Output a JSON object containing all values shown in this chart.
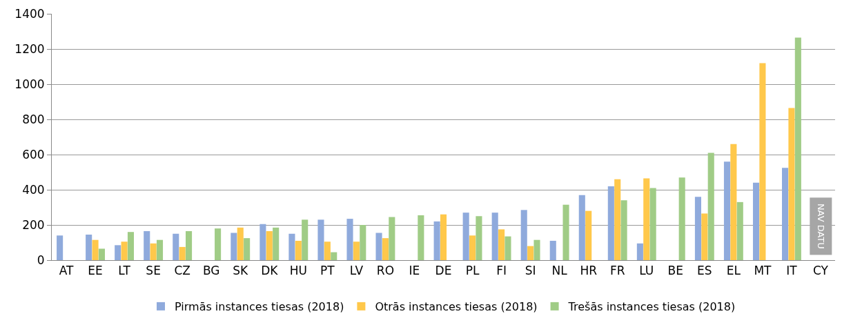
{
  "chart_data": {
    "type": "bar",
    "categories": [
      "AT",
      "EE",
      "LT",
      "SE",
      "CZ",
      "BG",
      "SK",
      "DK",
      "HU",
      "PT",
      "LV",
      "RO",
      "IE",
      "DE",
      "PL",
      "FI",
      "SI",
      "NL",
      "HR",
      "FR",
      "LU",
      "BE",
      "ES",
      "EL",
      "MT",
      "IT",
      "CY"
    ],
    "series": [
      {
        "name": "Pirmās instances tiesas (2018)",
        "color": "#8faadc",
        "values": [
          140,
          145,
          85,
          165,
          150,
          null,
          155,
          205,
          150,
          230,
          235,
          155,
          null,
          220,
          270,
          270,
          285,
          110,
          370,
          420,
          95,
          null,
          360,
          560,
          440,
          525,
          null
        ]
      },
      {
        "name": "Otrās instances tiesas (2018)",
        "color": "#ffc84b",
        "values": [
          null,
          115,
          105,
          95,
          75,
          null,
          185,
          165,
          110,
          105,
          105,
          125,
          null,
          260,
          140,
          175,
          80,
          null,
          280,
          460,
          465,
          null,
          265,
          660,
          1120,
          865,
          null
        ]
      },
      {
        "name": "Trešās instances tiesas (2018)",
        "color": "#a0cc86",
        "values": [
          null,
          65,
          160,
          115,
          165,
          180,
          125,
          185,
          230,
          45,
          200,
          245,
          255,
          null,
          250,
          135,
          115,
          315,
          null,
          340,
          410,
          470,
          610,
          330,
          null,
          1265,
          null
        ]
      }
    ],
    "ylim": [
      0,
      1400
    ],
    "yticks": [
      0,
      200,
      400,
      600,
      800,
      1000,
      1200,
      1400
    ],
    "grid": "y",
    "legend": "bottom",
    "annotations": [
      "NAV DATU"
    ]
  }
}
